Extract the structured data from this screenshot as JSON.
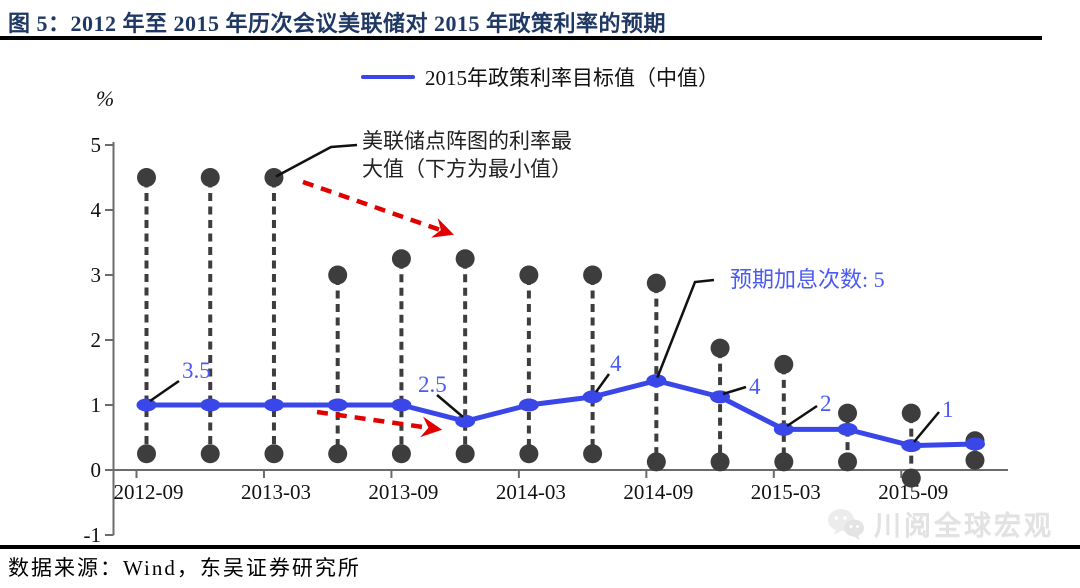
{
  "header": {
    "title": "图 5：2012 年至 2015 年历次会议美联储对 2015 年政策利率的预期"
  },
  "legend": {
    "label": "2015年政策利率目标值（中值）"
  },
  "chart_data": {
    "type": "line",
    "unit_label": "%",
    "ylim": [
      -1,
      5
    ],
    "y_ticks": [
      5,
      4,
      3,
      2,
      1,
      0,
      -1
    ],
    "x_tick_labels": [
      "2012-09",
      "2013-03",
      "2013-09",
      "2014-03",
      "2014-09",
      "2015-03",
      "2015-09"
    ],
    "labeled_column_indexes": [
      0,
      2,
      4,
      6,
      8,
      10,
      12
    ],
    "num_columns": 14,
    "series": [
      {
        "name": "dot_plot_max",
        "values": [
          4.5,
          4.5,
          4.5,
          3.0,
          3.25,
          3.25,
          3.0,
          3.0,
          2.875,
          1.875,
          1.625,
          0.875,
          0.875,
          0.45
        ]
      },
      {
        "name": "policy_rate_target_median",
        "values": [
          1.0,
          1.0,
          1.0,
          1.0,
          1.0,
          0.75,
          1.0,
          1.125,
          1.375,
          1.125,
          0.625,
          0.625,
          0.375,
          0.4
        ]
      },
      {
        "name": "dot_plot_min",
        "values": [
          0.25,
          0.25,
          0.25,
          0.25,
          0.25,
          0.25,
          0.25,
          0.25,
          0.125,
          0.125,
          0.125,
          0.125,
          -0.125,
          0.15
        ]
      }
    ],
    "annotations": {
      "max_note_line1": "美联储点阵图的利率最",
      "max_note_line2": "大值（下方为最小值）",
      "max_note_attached_column": 2,
      "hike_note": "预期加息次数: 5",
      "hike_note_attached_column": 8,
      "point_labels": [
        {
          "text": "3.5",
          "column": 0
        },
        {
          "text": "2.5",
          "column": 5
        },
        {
          "text": "4",
          "column": 7
        },
        {
          "text": "4",
          "column": 9
        },
        {
          "text": "2",
          "column": 10
        },
        {
          "text": "1",
          "column": 12
        }
      ]
    },
    "legend_position": "top-center",
    "grid": false
  },
  "footer": {
    "source": "数据来源：Wind，东吴证券研究所",
    "watermark": "川阅全球宏观"
  },
  "colors": {
    "title_navy": "#1f3864",
    "line_blue": "#3946e8",
    "annotation_blue": "#4a5af2",
    "arrow_red": "#e00000",
    "dot_gray": "#3d3d3d",
    "axis_gray": "#6b6b6b",
    "text_black": "#111111",
    "watermark_gray": "#e2e2e2"
  }
}
